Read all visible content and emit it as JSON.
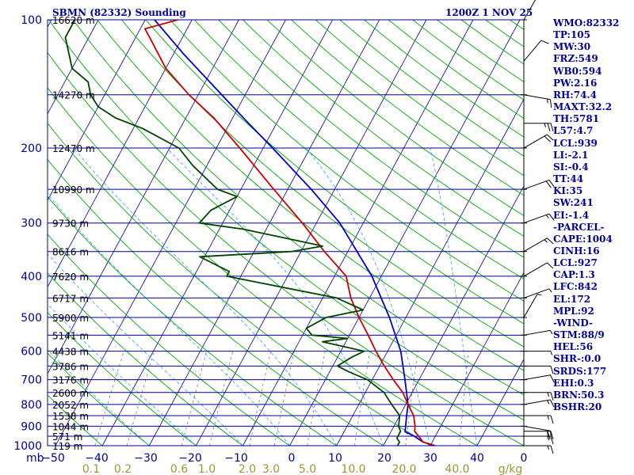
{
  "header": {
    "station": "SBMN (82332) Sounding",
    "time": "1200Z  1 NOV 25"
  },
  "indices": [
    "WMO:82332",
    "TP:105",
    "MW:30",
    "FRZ:549",
    "WB0:594",
    "PW:2.16",
    "RH:74.4",
    "MAXT:32.2",
    "TH:5781",
    "L57:4.7",
    "LCL:939",
    "LI:-2.1",
    "SI:-0.4",
    "TT:44",
    "KI:35",
    "SW:241",
    "EI:-1.4",
    "-PARCEL-",
    "CAPE:1004",
    "CINH:16",
    "LCL:927",
    "CAP:1.3",
    "LFC:842",
    "EL:172",
    "MPL:92",
    "-WIND-",
    "STM:88/9",
    "HEL:56",
    "SHR-:0.0",
    "SRDS:177",
    "EHI:0.3",
    "BRN:50.3",
    "BSHR:20"
  ],
  "colors": {
    "isobar": "#000099",
    "isotherm": "#000099",
    "dry_adiabat": "#00aa00",
    "moist_adiabat": "#000099",
    "mixing_ratio": "#777777",
    "wet_bulb": "#3399ff",
    "temperature": "#cc0000",
    "dewpoint": "#004400",
    "parcel": "#0000cc",
    "mixing_label": "#999933",
    "barb": "#000000"
  },
  "chart_data": {
    "type": "line",
    "title": "SBMN (82332) Sounding",
    "xlabel": "",
    "ylabel": "",
    "pressure_unit_label": "mb",
    "mixing_unit_label": "g/kg",
    "skew_t": true,
    "y_log_scale": true,
    "pressure_range": [
      1000,
      100
    ],
    "temp_range_at_surface": [
      -50,
      40
    ],
    "pressure_ticks": [
      "100",
      "200",
      "300",
      "400",
      "500",
      "600",
      "700",
      "800",
      "900",
      "1000"
    ],
    "temp_ticks": [
      "−50",
      "−40",
      "−30",
      "−20",
      "−10",
      "0",
      "10",
      "20",
      "30",
      "40",
      "0"
    ],
    "mixing_ratio_ticks": [
      "0.1",
      "0.2",
      "0.6",
      "1.0",
      "2.0",
      "3.0",
      "5.0",
      "10.0",
      "20.0",
      "40.0"
    ],
    "height_labels": [
      {
        "p": 100,
        "label": "16620 m"
      },
      {
        "p": 150,
        "label": "14270 m"
      },
      {
        "p": 200,
        "label": "12470 m"
      },
      {
        "p": 250,
        "label": "10990 m"
      },
      {
        "p": 300,
        "label": "9730 m"
      },
      {
        "p": 350,
        "label": "8616 m"
      },
      {
        "p": 400,
        "label": "7620 m"
      },
      {
        "p": 450,
        "label": "6717 m"
      },
      {
        "p": 500,
        "label": "5900 m"
      },
      {
        "p": 550,
        "label": "5141 m"
      },
      {
        "p": 600,
        "label": "4438 m"
      },
      {
        "p": 650,
        "label": "3786 m"
      },
      {
        "p": 700,
        "label": "3176 m"
      },
      {
        "p": 750,
        "label": "2600 m"
      },
      {
        "p": 800,
        "label": "2052 m"
      },
      {
        "p": 850,
        "label": "1538 m"
      },
      {
        "p": 900,
        "label": "1044 m"
      },
      {
        "p": 950,
        "label": "571 m"
      },
      {
        "p": 1000,
        "label": "119 m"
      }
    ],
    "series": [
      {
        "key": "temperature",
        "points": [
          [
            1000,
            31
          ],
          [
            980,
            28
          ],
          [
            960,
            27
          ],
          [
            925,
            25
          ],
          [
            900,
            24.5
          ],
          [
            850,
            23
          ],
          [
            800,
            20.5
          ],
          [
            750,
            18
          ],
          [
            700,
            14.5
          ],
          [
            650,
            11
          ],
          [
            600,
            7.5
          ],
          [
            550,
            4
          ],
          [
            500,
            0
          ],
          [
            450,
            -4
          ],
          [
            400,
            -7.5
          ],
          [
            350,
            -15
          ],
          [
            300,
            -23
          ],
          [
            250,
            -33
          ],
          [
            200,
            -45
          ],
          [
            170,
            -54
          ],
          [
            150,
            -62
          ],
          [
            130,
            -70
          ],
          [
            110,
            -77
          ],
          [
            105,
            -79
          ],
          [
            100,
            -73
          ]
        ]
      },
      {
        "key": "dewpoint",
        "points": [
          [
            1000,
            23
          ],
          [
            980,
            23
          ],
          [
            960,
            22
          ],
          [
            925,
            22
          ],
          [
            900,
            21
          ],
          [
            850,
            20
          ],
          [
            800,
            17
          ],
          [
            750,
            14
          ],
          [
            700,
            9
          ],
          [
            670,
            4
          ],
          [
            650,
            1
          ],
          [
            620,
            3
          ],
          [
            600,
            5
          ],
          [
            570,
            -5
          ],
          [
            560,
            0
          ],
          [
            550,
            -8
          ],
          [
            530,
            -10
          ],
          [
            500,
            -7
          ],
          [
            480,
            0
          ],
          [
            450,
            -7
          ],
          [
            400,
            -33
          ],
          [
            390,
            -33
          ],
          [
            360,
            -41
          ],
          [
            350,
            -22
          ],
          [
            340,
            -16
          ],
          [
            330,
            -22
          ],
          [
            310,
            -35
          ],
          [
            300,
            -45
          ],
          [
            280,
            -44
          ],
          [
            260,
            -40
          ],
          [
            250,
            -45
          ],
          [
            220,
            -53
          ],
          [
            200,
            -58
          ],
          [
            180,
            -68
          ],
          [
            170,
            -75
          ],
          [
            160,
            -80
          ],
          [
            150,
            -83
          ],
          [
            140,
            -85
          ],
          [
            130,
            -90
          ],
          [
            110,
            -95
          ],
          [
            100,
            -95
          ]
        ]
      },
      {
        "key": "parcel",
        "points": [
          [
            1000,
            31
          ],
          [
            980,
            28
          ],
          [
            950,
            25.5
          ],
          [
            927,
            23
          ],
          [
            900,
            22.5
          ],
          [
            850,
            21.5
          ],
          [
            800,
            20.5
          ],
          [
            700,
            17
          ],
          [
            600,
            12.8
          ],
          [
            500,
            6.5
          ],
          [
            400,
            -2
          ],
          [
            300,
            -15
          ],
          [
            250,
            -25
          ],
          [
            200,
            -38
          ],
          [
            172,
            -47
          ],
          [
            150,
            -55
          ],
          [
            120,
            -68
          ],
          [
            100,
            -78
          ]
        ]
      }
    ],
    "wind_barbs": [
      {
        "p": 1000,
        "dir": 90,
        "kt": 15
      },
      {
        "p": 950,
        "dir": 90,
        "kt": 15
      },
      {
        "p": 925,
        "dir": 90,
        "kt": 20
      },
      {
        "p": 900,
        "dir": 100,
        "kt": 20
      },
      {
        "p": 850,
        "dir": 90,
        "kt": 15
      },
      {
        "p": 800,
        "dir": 80,
        "kt": 15
      },
      {
        "p": 750,
        "dir": 90,
        "kt": 15
      },
      {
        "p": 700,
        "dir": 80,
        "kt": 10
      },
      {
        "p": 650,
        "dir": 90,
        "kt": 10
      },
      {
        "p": 600,
        "dir": 90,
        "kt": 5
      },
      {
        "p": 550,
        "dir": 80,
        "kt": 5
      },
      {
        "p": 500,
        "dir": 30,
        "kt": 5
      },
      {
        "p": 450,
        "dir": 70,
        "kt": 5
      },
      {
        "p": 400,
        "dir": 60,
        "kt": 10
      },
      {
        "p": 350,
        "dir": 60,
        "kt": 15
      },
      {
        "p": 300,
        "dir": 70,
        "kt": 15
      },
      {
        "p": 250,
        "dir": 70,
        "kt": 20
      },
      {
        "p": 200,
        "dir": 60,
        "kt": 20
      },
      {
        "p": 175,
        "dir": 90,
        "kt": 25
      },
      {
        "p": 150,
        "dir": 100,
        "kt": 15
      },
      {
        "p": 125,
        "dir": 40,
        "kt": 10
      },
      {
        "p": 100,
        "dir": 30,
        "kt": 10
      }
    ]
  }
}
